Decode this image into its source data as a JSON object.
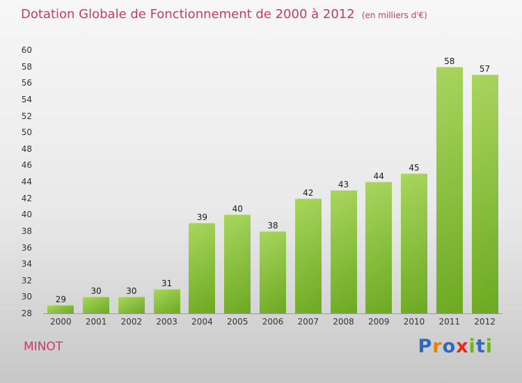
{
  "title": {
    "text": "Dotation Globale de Fonctionnement de 2000 à 2012",
    "subtitle": "(en milliers d'€)"
  },
  "footer": {
    "brand": "MINOT",
    "logo": [
      {
        "ch": "P",
        "color": "#2e6ac0"
      },
      {
        "ch": "r",
        "color": "#f07c00"
      },
      {
        "ch": "o",
        "color": "#2e6ac0"
      },
      {
        "ch": "x",
        "color": "#dd2b1c"
      },
      {
        "ch": "i",
        "color": "#6fb41e"
      },
      {
        "ch": "t",
        "color": "#2e6ac0"
      },
      {
        "ch": "i",
        "color": "#6fb41e"
      }
    ]
  },
  "chart_data": {
    "type": "bar",
    "title": "Dotation Globale de Fonctionnement de 2000 à 2012",
    "subtitle": "(en milliers d'€)",
    "categories": [
      "2000",
      "2001",
      "2002",
      "2003",
      "2004",
      "2005",
      "2006",
      "2007",
      "2008",
      "2009",
      "2010",
      "2011",
      "2012"
    ],
    "values": [
      29,
      30,
      30,
      31,
      39,
      40,
      38,
      42,
      43,
      44,
      45,
      58,
      57
    ],
    "xlabel": "",
    "ylabel": "",
    "ylim": [
      28,
      60
    ],
    "ytick_step": 2,
    "grid": false,
    "legend": "none",
    "value_labels": true,
    "bar_color_top": "#a9d65e",
    "bar_color_bottom": "#6ca922",
    "title_color": "#c53a6e"
  }
}
